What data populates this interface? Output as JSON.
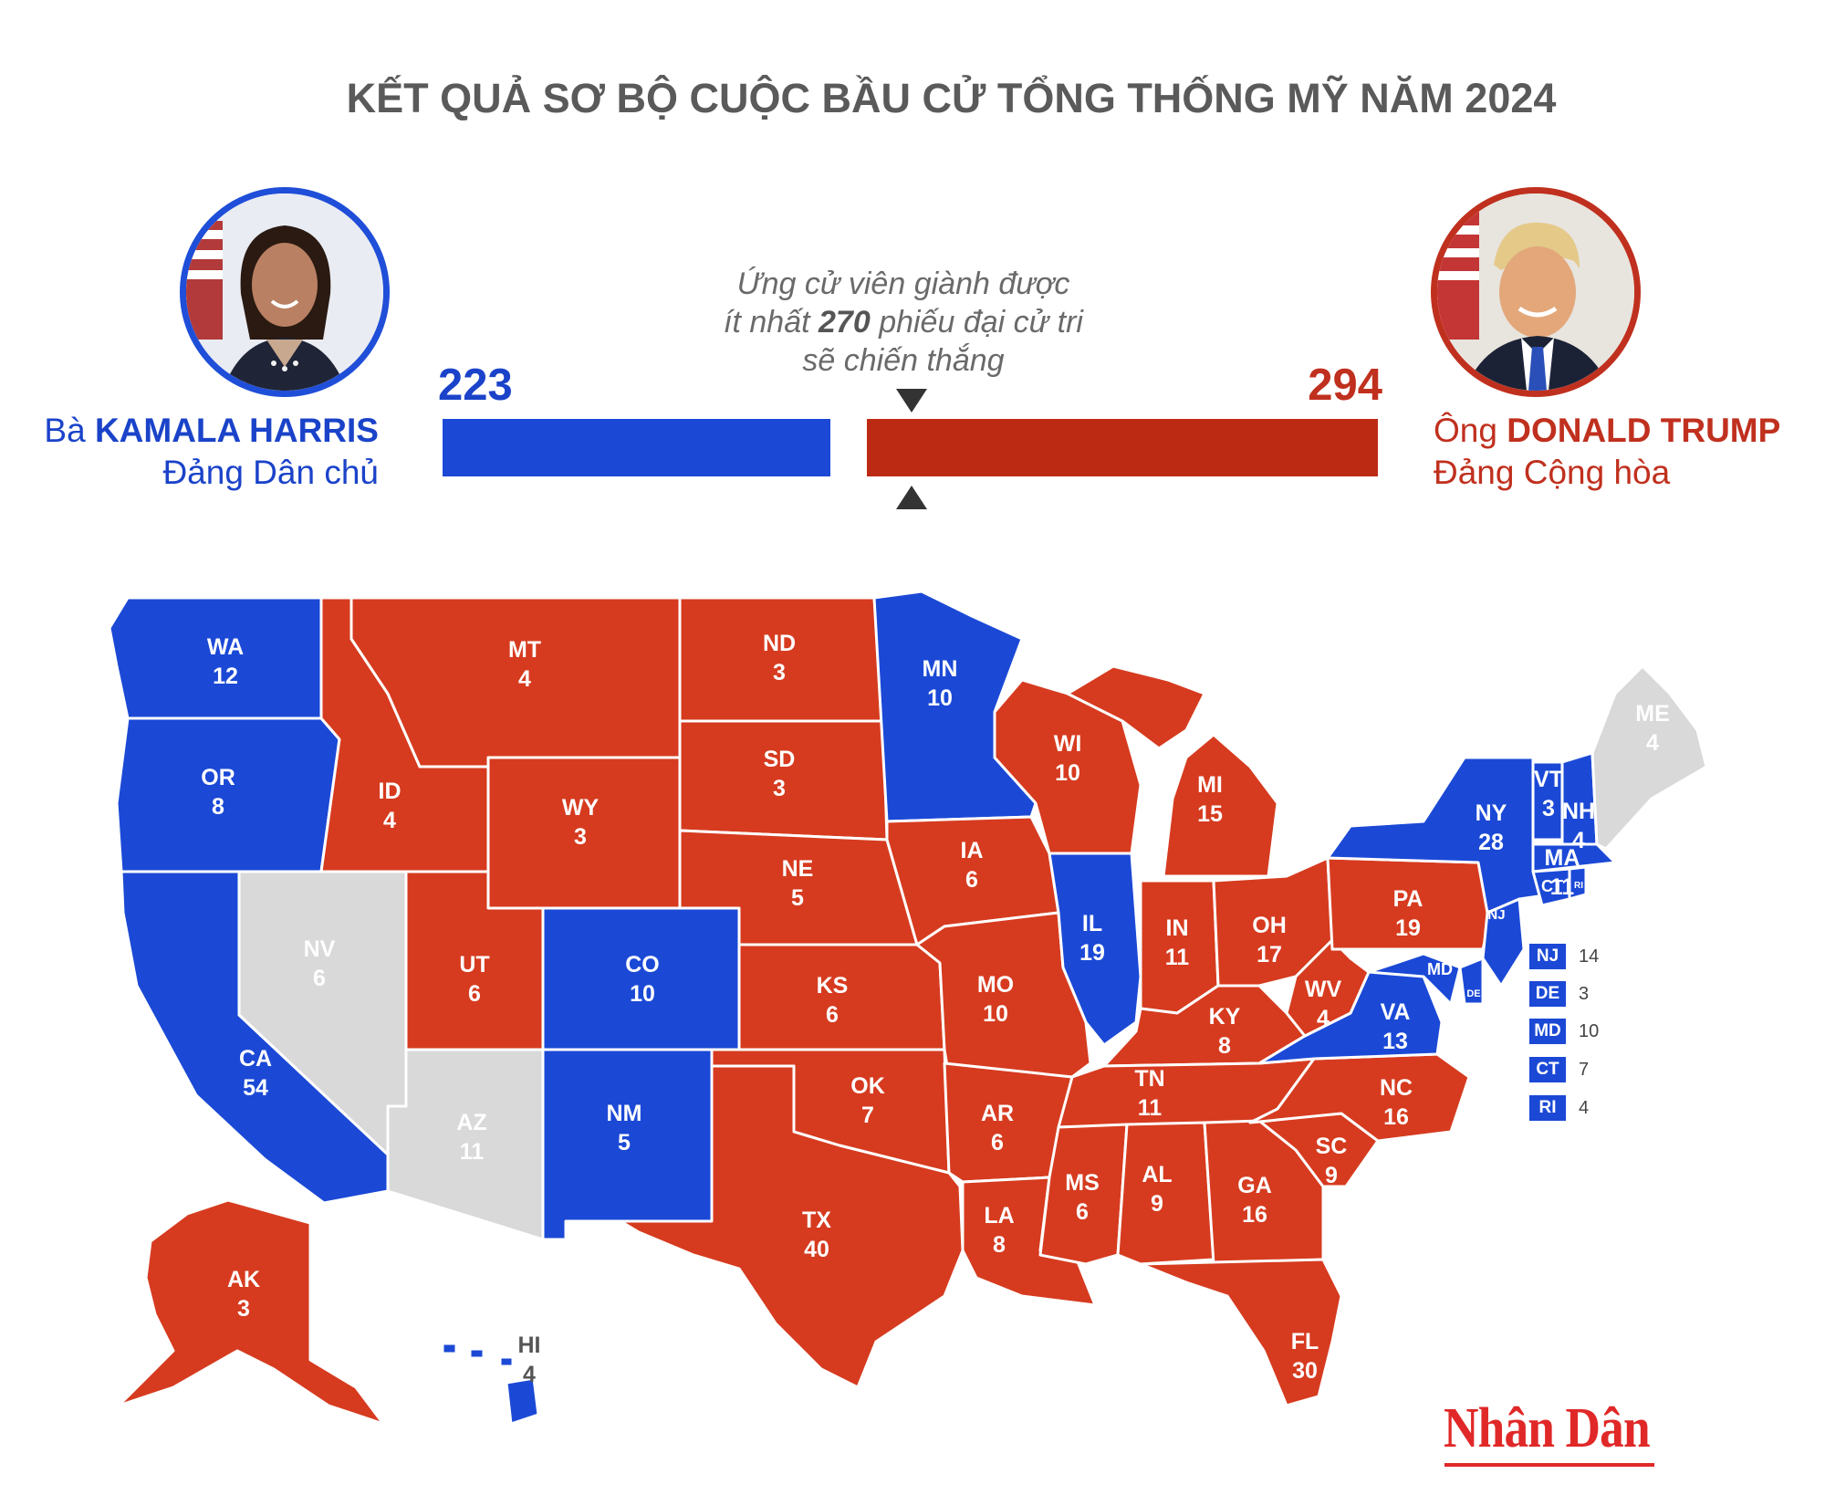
{
  "title": "KẾT QUẢ SƠ BỘ CUỘC BẦU CỬ TỔNG THỐNG MỸ NĂM 2024",
  "colors": {
    "democrat": "#1b49d6",
    "republican": "#d63b1f",
    "undecided": "#d9d9d9",
    "border": "#ffffff"
  },
  "democrat": {
    "prefix": "Bà",
    "name": "KAMALA HARRIS",
    "party": "Đảng Dân chủ",
    "votes": "223",
    "photo_icon": "kamala-harris-portrait"
  },
  "republican": {
    "prefix": "Ông",
    "name": "DONALD TRUMP",
    "party": "Đảng Cộng hòa",
    "votes": "294",
    "photo_icon": "donald-trump-portrait"
  },
  "threshold": {
    "line1": "Ứng cử viên giành được",
    "line2_pre": "ít nhất",
    "line2_num": "270",
    "line2_post": "phiếu đại cử tri",
    "line3": "sẽ chiến thắng"
  },
  "states": [
    {
      "code": "WA",
      "votes": "12",
      "winner": "dem"
    },
    {
      "code": "OR",
      "votes": "8",
      "winner": "dem"
    },
    {
      "code": "CA",
      "votes": "54",
      "winner": "dem"
    },
    {
      "code": "NV",
      "votes": "6",
      "winner": "none"
    },
    {
      "code": "ID",
      "votes": "4",
      "winner": "rep"
    },
    {
      "code": "MT",
      "votes": "4",
      "winner": "rep"
    },
    {
      "code": "WY",
      "votes": "3",
      "winner": "rep"
    },
    {
      "code": "UT",
      "votes": "6",
      "winner": "rep"
    },
    {
      "code": "AZ",
      "votes": "11",
      "winner": "none"
    },
    {
      "code": "CO",
      "votes": "10",
      "winner": "dem"
    },
    {
      "code": "NM",
      "votes": "5",
      "winner": "dem"
    },
    {
      "code": "ND",
      "votes": "3",
      "winner": "rep"
    },
    {
      "code": "SD",
      "votes": "3",
      "winner": "rep"
    },
    {
      "code": "NE",
      "votes": "5",
      "winner": "rep"
    },
    {
      "code": "KS",
      "votes": "6",
      "winner": "rep"
    },
    {
      "code": "OK",
      "votes": "7",
      "winner": "rep"
    },
    {
      "code": "TX",
      "votes": "40",
      "winner": "rep"
    },
    {
      "code": "MN",
      "votes": "10",
      "winner": "dem"
    },
    {
      "code": "IA",
      "votes": "6",
      "winner": "rep"
    },
    {
      "code": "MO",
      "votes": "10",
      "winner": "rep"
    },
    {
      "code": "AR",
      "votes": "6",
      "winner": "rep"
    },
    {
      "code": "LA",
      "votes": "8",
      "winner": "rep"
    },
    {
      "code": "WI",
      "votes": "10",
      "winner": "rep"
    },
    {
      "code": "IL",
      "votes": "19",
      "winner": "dem"
    },
    {
      "code": "MI",
      "votes": "15",
      "winner": "rep"
    },
    {
      "code": "IN",
      "votes": "11",
      "winner": "rep"
    },
    {
      "code": "OH",
      "votes": "17",
      "winner": "rep"
    },
    {
      "code": "KY",
      "votes": "8",
      "winner": "rep"
    },
    {
      "code": "TN",
      "votes": "11",
      "winner": "rep"
    },
    {
      "code": "MS",
      "votes": "6",
      "winner": "rep"
    },
    {
      "code": "AL",
      "votes": "9",
      "winner": "rep"
    },
    {
      "code": "GA",
      "votes": "16",
      "winner": "rep"
    },
    {
      "code": "FL",
      "votes": "30",
      "winner": "rep"
    },
    {
      "code": "SC",
      "votes": "9",
      "winner": "rep"
    },
    {
      "code": "NC",
      "votes": "16",
      "winner": "rep"
    },
    {
      "code": "VA",
      "votes": "13",
      "winner": "dem"
    },
    {
      "code": "WV",
      "votes": "4",
      "winner": "rep"
    },
    {
      "code": "PA",
      "votes": "19",
      "winner": "rep"
    },
    {
      "code": "NY",
      "votes": "28",
      "winner": "dem"
    },
    {
      "code": "VT",
      "votes": "3",
      "winner": "dem"
    },
    {
      "code": "NH",
      "votes": "4",
      "winner": "dem"
    },
    {
      "code": "MA",
      "votes": "11",
      "winner": "dem"
    },
    {
      "code": "ME",
      "votes": "4",
      "winner": "none"
    },
    {
      "code": "AK",
      "votes": "3",
      "winner": "rep"
    },
    {
      "code": "HI",
      "votes": "4",
      "winner": "dem"
    }
  ],
  "small_labels": {
    "nj": "NJ",
    "md": "MD",
    "de": "DE",
    "ct": "CT",
    "ri": "RI"
  },
  "legend": [
    {
      "code": "NJ",
      "votes": "14"
    },
    {
      "code": "DE",
      "votes": "3"
    },
    {
      "code": "MD",
      "votes": "10"
    },
    {
      "code": "CT",
      "votes": "7"
    },
    {
      "code": "RI",
      "votes": "4"
    }
  ],
  "logo": "Nhân Dân"
}
